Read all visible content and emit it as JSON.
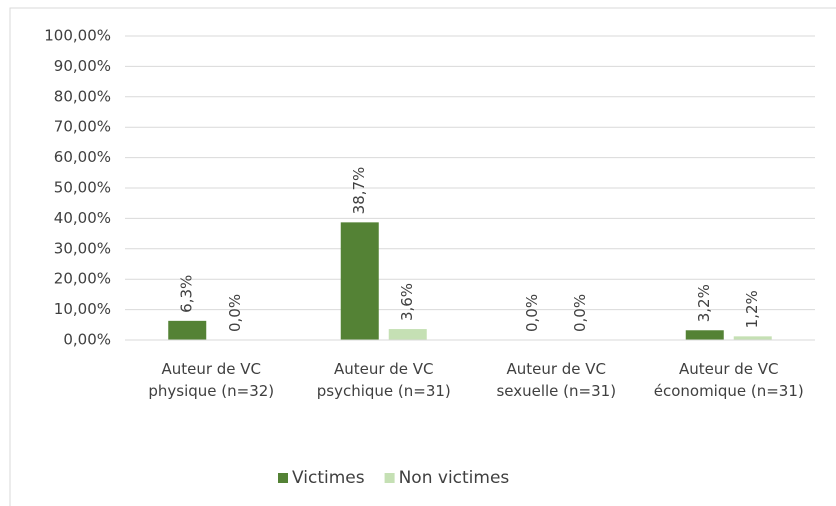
{
  "chart_data": {
    "type": "bar",
    "categories": [
      "Auteur de VC physique (n=32)",
      "Auteur de VC psychique (n=31)",
      "Auteur de VC sexuelle (n=31)",
      "Auteur de VC économique (n=31)"
    ],
    "series": [
      {
        "name": "Victimes",
        "color": "#548235",
        "values": [
          6.3,
          38.7,
          0,
          3.2
        ],
        "value_labels": [
          "6,3%",
          "38,7%",
          "0,0%",
          "3,2%"
        ]
      },
      {
        "name": "Non victimes",
        "color": "#c5e0b4",
        "values": [
          0,
          3.6,
          0,
          1.2
        ],
        "value_labels": [
          "0,0%",
          "3,6%",
          "0,0%",
          "1,2%"
        ]
      }
    ],
    "ylim": [
      0,
      100
    ],
    "yticks": [
      {
        "value": 0,
        "label": "0,00%"
      },
      {
        "value": 10,
        "label": "10,00%"
      },
      {
        "value": 20,
        "label": "20,00%"
      },
      {
        "value": 30,
        "label": "30,00%"
      },
      {
        "value": 40,
        "label": "40,00%"
      },
      {
        "value": 50,
        "label": "50,00%"
      },
      {
        "value": 60,
        "label": "60,00%"
      },
      {
        "value": 70,
        "label": "70,00%"
      },
      {
        "value": 80,
        "label": "80,00%"
      },
      {
        "value": 90,
        "label": "90,00%"
      },
      {
        "value": 100,
        "label": "100,00%"
      }
    ],
    "grid": true,
    "legend": "bottom"
  }
}
